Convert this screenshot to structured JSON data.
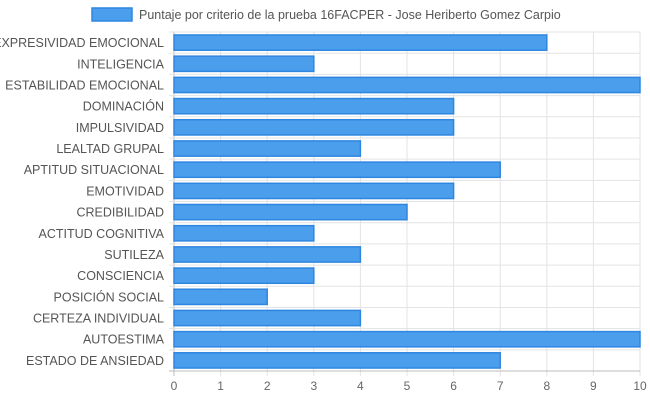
{
  "chart_data": {
    "type": "bar",
    "orientation": "horizontal",
    "categories": [
      "EXPRESIVIDAD EMOCIONAL",
      "INTELIGENCIA",
      "ESTABILIDAD EMOCIONAL",
      "DOMINACIÓN",
      "IMPULSIVIDAD",
      "LEALTAD GRUPAL",
      "APTITUD SITUACIONAL",
      "EMOTIVIDAD",
      "CREDIBILIDAD",
      "ACTITUD COGNITIVA",
      "SUTILEZA",
      "CONSCIENCIA",
      "POSICIÓN SOCIAL",
      "CERTEZA INDIVIDUAL",
      "AUTOESTIMA",
      "ESTADO DE ANSIEDAD"
    ],
    "series": [
      {
        "name": "Puntaje por criterio de la prueba 16FACPER - Jose Heriberto Gomez Carpio",
        "values": [
          8,
          3,
          10,
          6,
          6,
          4,
          7,
          6,
          5,
          3,
          4,
          3,
          2,
          4,
          10,
          7
        ]
      }
    ],
    "xlim": [
      0,
      10
    ],
    "x_ticks": [
      "0",
      "1",
      "2",
      "3",
      "4",
      "5",
      "6",
      "7",
      "8",
      "9",
      "10"
    ],
    "grid": true,
    "legend_position": "top",
    "colors": {
      "bar_fill": "#4a9eec",
      "bar_stroke": "#2f86e0",
      "grid": "#e3e3e3"
    }
  }
}
